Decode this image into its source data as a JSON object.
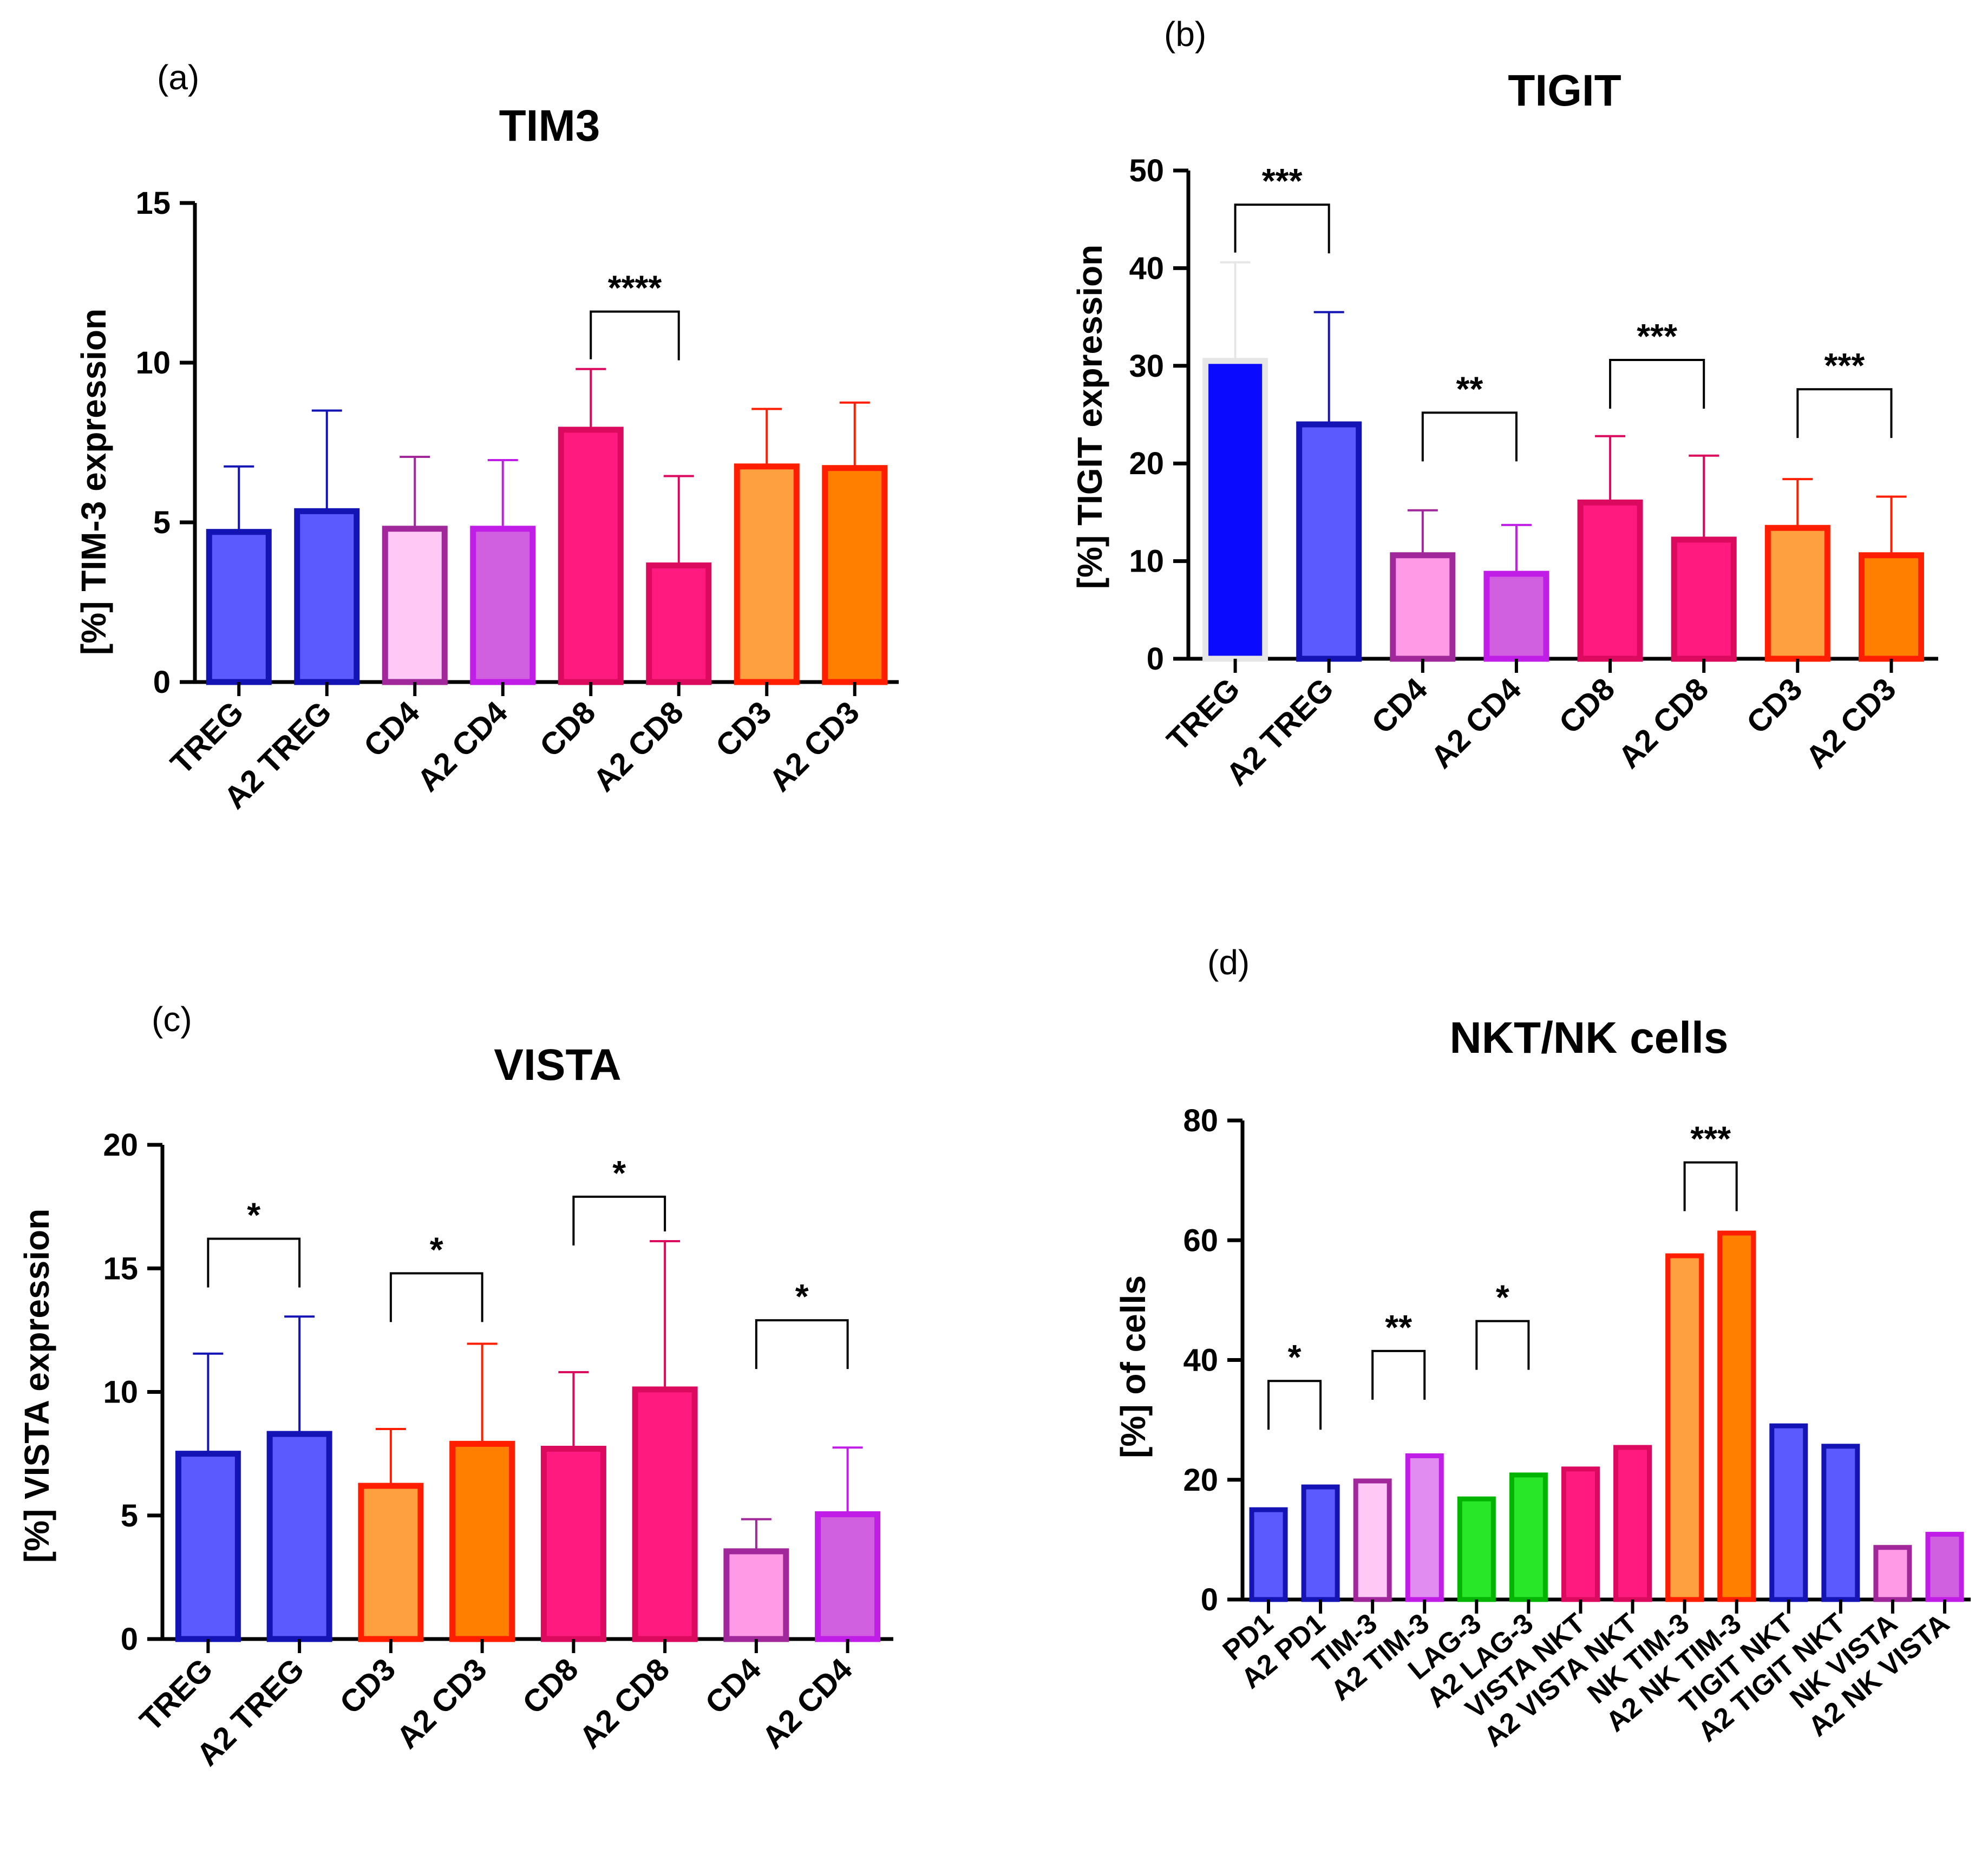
{
  "chart_data": [
    {
      "panel": "(a)",
      "type": "bar",
      "title": "TIM3",
      "ylabel": "[%] TIM-3 expression",
      "xlabel": "",
      "ylim": [
        0,
        15
      ],
      "yticks": [
        0,
        5,
        10,
        15
      ],
      "categories": [
        "TREG",
        "A2 TREG",
        "CD4",
        "A2 CD4",
        "CD8",
        "A2 CD8",
        "CD3",
        "A2 CD3"
      ],
      "values": [
        4.7,
        5.35,
        4.8,
        4.8,
        7.9,
        3.65,
        6.75,
        6.7
      ],
      "errors": [
        2.05,
        3.15,
        2.25,
        2.15,
        1.9,
        2.8,
        1.8,
        2.05
      ],
      "fills": [
        "#5a5aff",
        "#5a5aff",
        "#ffc8f5",
        "#d060e0",
        "#ff1a80",
        "#ff1a80",
        "#ffa040",
        "#ff7f00"
      ],
      "strokes": [
        "#1414b4",
        "#1414b4",
        "#a0289b",
        "#c01ee6",
        "#dc0a5f",
        "#dc0a5f",
        "#ff1e00",
        "#ff1e00"
      ],
      "significance": [
        {
          "pair": [
            4,
            5
          ],
          "label": "****",
          "top": 11.6
        }
      ]
    },
    {
      "panel": "(b)",
      "type": "bar",
      "title": "TIGIT",
      "ylabel": "[%] TIGIT expression",
      "xlabel": "",
      "ylim": [
        0,
        50
      ],
      "yticks": [
        0,
        10,
        20,
        30,
        40,
        50
      ],
      "categories": [
        "TREG",
        "A2 TREG",
        "CD4",
        "A2 CD4",
        "CD8",
        "A2 CD8",
        "CD3",
        "A2 CD3"
      ],
      "values": [
        30.5,
        24.0,
        10.6,
        8.7,
        16.0,
        12.2,
        13.4,
        10.6
      ],
      "errors": [
        10.1,
        11.5,
        4.6,
        5.0,
        6.8,
        8.6,
        5.0,
        6.0
      ],
      "fills": [
        "#0a0aff",
        "#5a5aff",
        "#ff9be6",
        "#d060e0",
        "#ff1a80",
        "#ff1a80",
        "#ffa040",
        "#ff7f00"
      ],
      "strokes": [
        "#e6e6e6",
        "#1414b4",
        "#a0289b",
        "#c01ee6",
        "#dc0a5f",
        "#dc0a5f",
        "#ff1e00",
        "#ff1e00"
      ],
      "significance": [
        {
          "pair": [
            0,
            1
          ],
          "label": "***",
          "top": 46.5
        },
        {
          "pair": [
            2,
            3
          ],
          "label": "**",
          "top": 25.2
        },
        {
          "pair": [
            4,
            5
          ],
          "label": "***",
          "top": 30.6
        },
        {
          "pair": [
            6,
            7
          ],
          "label": "***",
          "top": 27.6
        }
      ]
    },
    {
      "panel": "(c)",
      "type": "bar",
      "title": "VISTA",
      "ylabel": "[%] VISTA expression",
      "xlabel": "",
      "ylim": [
        0,
        20
      ],
      "yticks": [
        0,
        5,
        10,
        15,
        20
      ],
      "categories": [
        "TREG",
        "A2 TREG",
        "CD3",
        "A2 CD3",
        "CD8",
        "A2 CD8",
        "CD4",
        "A2 CD4"
      ],
      "values": [
        7.5,
        8.3,
        6.2,
        7.9,
        7.7,
        10.1,
        3.55,
        5.05
      ],
      "errors": [
        4.05,
        4.75,
        2.3,
        4.05,
        3.1,
        6.0,
        1.3,
        2.7
      ],
      "fills": [
        "#5a5aff",
        "#5a5aff",
        "#ffa040",
        "#ff7f00",
        "#ff1a80",
        "#ff1a80",
        "#ff9be6",
        "#d060e0"
      ],
      "strokes": [
        "#1414b4",
        "#1414b4",
        "#ff1e00",
        "#ff1e00",
        "#dc0a5f",
        "#dc0a5f",
        "#a0289b",
        "#c01ee6"
      ],
      "significance": [
        {
          "pair": [
            0,
            1
          ],
          "label": "*",
          "top": 16.2
        },
        {
          "pair": [
            2,
            3
          ],
          "label": "*",
          "top": 14.8
        },
        {
          "pair": [
            4,
            5
          ],
          "label": "*",
          "top": 17.9
        },
        {
          "pair": [
            6,
            7
          ],
          "label": "*",
          "top": 12.9
        }
      ]
    },
    {
      "panel": "(d)",
      "type": "bar",
      "title": "NKT/NK cells",
      "ylabel": "[%] of cells",
      "xlabel": "",
      "ylim": [
        0,
        80
      ],
      "yticks": [
        0,
        20,
        40,
        60,
        80
      ],
      "categories": [
        "PD1",
        "A2  PD1",
        "TIM-3",
        "A2 TIM-3",
        "LAG-3",
        "A2 LAG-3",
        "VISTA NKT",
        "A2 VISTA NKT",
        "NK TIM-3",
        "A2 NK TIM-3",
        "TIGIT NKT",
        "A2  TIGIT NKT",
        "NK VISTA",
        "A2 NK VISTA"
      ],
      "values": [
        15.0,
        18.8,
        19.8,
        24.0,
        16.8,
        20.8,
        21.8,
        25.4,
        57.4,
        61.2,
        29.0,
        25.6,
        8.7,
        10.9
      ],
      "errors": [
        0,
        0,
        0,
        0,
        0,
        0,
        0,
        0,
        0,
        0,
        0,
        0,
        0,
        0
      ],
      "fills": [
        "#5a5aff",
        "#5a5aff",
        "#ffc8f5",
        "#e08cf0",
        "#28e628",
        "#28e628",
        "#ff1a80",
        "#ff1a80",
        "#ffa040",
        "#ff7f00",
        "#5a5aff",
        "#5a5aff",
        "#ff9be6",
        "#d060e0"
      ],
      "strokes": [
        "#1414b4",
        "#1414b4",
        "#a0289b",
        "#c01ee6",
        "#00b400",
        "#00b400",
        "#dc0a5f",
        "#dc0a5f",
        "#ff1e00",
        "#ff1e00",
        "#1414b4",
        "#1414b4",
        "#a0289b",
        "#c01ee6"
      ],
      "significance": [
        {
          "pair": [
            0,
            1
          ],
          "label": "*",
          "top": 36.5
        },
        {
          "pair": [
            2,
            3
          ],
          "label": "**",
          "top": 41.5
        },
        {
          "pair": [
            4,
            5
          ],
          "label": "*",
          "top": 46.5
        },
        {
          "pair": [
            8,
            9
          ],
          "label": "***",
          "top": 73.0
        }
      ]
    }
  ]
}
